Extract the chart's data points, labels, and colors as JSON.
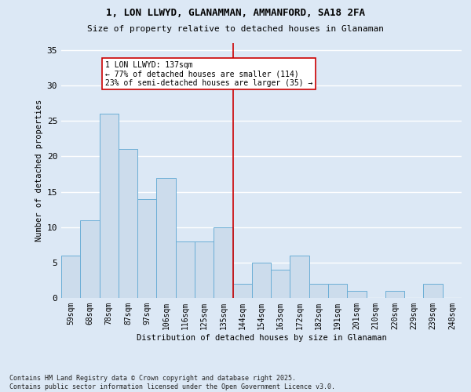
{
  "title1": "1, LON LLWYD, GLANAMMAN, AMMANFORD, SA18 2FA",
  "title2": "Size of property relative to detached houses in Glanaman",
  "xlabel": "Distribution of detached houses by size in Glanaman",
  "ylabel": "Number of detached properties",
  "bar_labels": [
    "59sqm",
    "68sqm",
    "78sqm",
    "87sqm",
    "97sqm",
    "106sqm",
    "116sqm",
    "125sqm",
    "135sqm",
    "144sqm",
    "154sqm",
    "163sqm",
    "172sqm",
    "182sqm",
    "191sqm",
    "201sqm",
    "210sqm",
    "220sqm",
    "229sqm",
    "239sqm",
    "248sqm"
  ],
  "bar_values": [
    6,
    11,
    26,
    21,
    14,
    17,
    8,
    8,
    10,
    2,
    5,
    4,
    6,
    2,
    2,
    1,
    0,
    1,
    0,
    2,
    0
  ],
  "bar_color": "#ccdcec",
  "bar_edge_color": "#6baed6",
  "vline_x_index": 8.5,
  "vline_color": "#cc0000",
  "annotation_text": "1 LON LLWYD: 137sqm\n← 77% of detached houses are smaller (114)\n23% of semi-detached houses are larger (35) →",
  "annotation_box_color": "#ffffff",
  "annotation_box_edge_color": "#cc0000",
  "ylim": [
    0,
    36
  ],
  "yticks": [
    0,
    5,
    10,
    15,
    20,
    25,
    30,
    35
  ],
  "background_color": "#dce8f5",
  "grid_color": "#ffffff",
  "footnote": "Contains HM Land Registry data © Crown copyright and database right 2025.\nContains public sector information licensed under the Open Government Licence v3.0."
}
